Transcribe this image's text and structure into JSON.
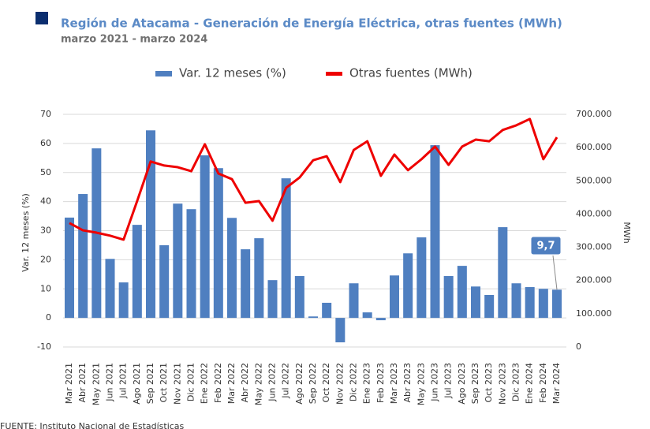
{
  "chart_data": {
    "type": "bar",
    "title": "Región de Atacama - Generación de Energía Eléctrica, otras fuentes (MWh)",
    "subtitle": "marzo 2021 - marzo 2024",
    "y_label": "Var. 12 meses (%)",
    "y2_label": "MWh",
    "source": "FUENTE: Instituto Nacional de Estadísticas",
    "categories": [
      "Mar 2021",
      "Abr 2021",
      "May 2021",
      "Jun 2021",
      "Jul 2021",
      "Ago 2021",
      "Sep 2021",
      "Oct 2021",
      "Nov 2021",
      "Dic 2021",
      "Ene 2022",
      "Feb 2022",
      "Mar 2022",
      "Abr 2022",
      "May 2022",
      "Jun 2022",
      "Jul 2022",
      "Ago 2022",
      "Sep 2022",
      "Oct 2022",
      "Nov 2022",
      "Dic 2022",
      "Ene 2023",
      "Feb 2023",
      "Mar 2023",
      "Abr 2023",
      "May 2023",
      "Jun 2023",
      "Jul 2023",
      "Ago 2023",
      "Sep 2023",
      "Oct 2023",
      "Nov 2023",
      "Dic 2023",
      "Ene 2024",
      "Feb 2024",
      "Mar 2024"
    ],
    "series": [
      {
        "name": "Var. 12 meses (%)",
        "type": "bar",
        "color": "#4f7fc0",
        "values": [
          34.5,
          42.6,
          58.3,
          20.3,
          12.2,
          32.0,
          64.5,
          25.0,
          39.3,
          37.4,
          55.9,
          51.5,
          34.4,
          23.6,
          27.4,
          13.0,
          48.0,
          14.4,
          0.5,
          5.2,
          -8.4,
          11.9,
          1.9,
          -0.8,
          14.6,
          22.2,
          27.7,
          59.4,
          14.4,
          17.9,
          10.8,
          7.9,
          31.2,
          11.9,
          10.6,
          10.0,
          9.7
        ],
        "value_labels": [
          null,
          null,
          null,
          null,
          null,
          null,
          null,
          null,
          null,
          null,
          null,
          null,
          null,
          null,
          null,
          null,
          null,
          null,
          null,
          null,
          null,
          null,
          null,
          null,
          null,
          null,
          null,
          null,
          null,
          null,
          null,
          null,
          null,
          null,
          null,
          null,
          "9,7"
        ]
      },
      {
        "name": "Otras fuentes (MWh)",
        "type": "line",
        "axis": "y2",
        "color": "#ee0000",
        "values": [
          373000,
          351000,
          344000,
          335000,
          323000,
          439000,
          558000,
          546000,
          541000,
          529000,
          610000,
          522000,
          505000,
          434000,
          439000,
          380000,
          479000,
          510000,
          562000,
          574000,
          496000,
          593000,
          619000,
          515000,
          579000,
          532000,
          565000,
          603000,
          548000,
          603000,
          624000,
          619000,
          653000,
          667000,
          686000,
          565000,
          631000
        ]
      }
    ],
    "ylim": [
      -10,
      70
    ],
    "yticks": [
      -10,
      0,
      10,
      20,
      30,
      40,
      50,
      60,
      70
    ],
    "y2lim": [
      0,
      700000
    ],
    "y2ticks": [
      0,
      {
        "value": 100000,
        "label": "100.000"
      },
      {
        "value": 200000,
        "label": "200.000"
      },
      {
        "value": 300000,
        "label": "300.000"
      },
      {
        "value": 400000,
        "label": "400.000"
      },
      {
        "value": 500000,
        "label": "500.000"
      },
      {
        "value": 600000,
        "label": "600.000"
      },
      {
        "value": 700000,
        "label": "700.000"
      }
    ],
    "grid": true
  }
}
